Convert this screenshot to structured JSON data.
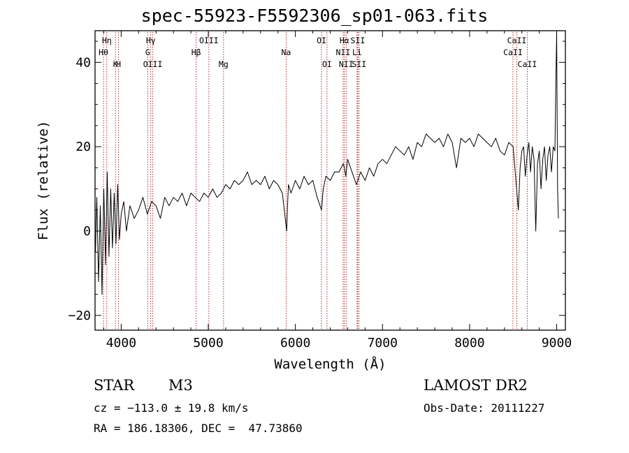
{
  "chart_data": {
    "type": "line",
    "title": "spec-55923-F5592306_sp01-063.fits",
    "xlabel": "Wavelength (Å)",
    "ylabel": "Flux (relative)",
    "xlim": [
      3700,
      9100
    ],
    "ylim": [
      -23.5,
      47.5
    ],
    "x_ticks": [
      4000,
      5000,
      6000,
      7000,
      8000,
      9000
    ],
    "y_ticks": [
      -20,
      0,
      20,
      40
    ],
    "x_tick_labels": [
      "4000",
      "5000",
      "6000",
      "7000",
      "8000",
      "9000"
    ],
    "y_tick_labels": [
      "−20",
      "0",
      "20",
      "40"
    ],
    "grid": false,
    "series": [
      {
        "x": [
          3705,
          3720,
          3740,
          3760,
          3780,
          3800,
          3820,
          3840,
          3860,
          3880,
          3900,
          3920,
          3940,
          3960,
          3980,
          4000,
          4030,
          4060,
          4100,
          4150,
          4200,
          4250,
          4300,
          4350,
          4400,
          4450,
          4500,
          4550,
          4600,
          4650,
          4700,
          4750,
          4800,
          4850,
          4900,
          4950,
          5000,
          5050,
          5100,
          5150,
          5200,
          5250,
          5300,
          5350,
          5400,
          5450,
          5500,
          5550,
          5600,
          5650,
          5700,
          5750,
          5800,
          5850,
          5900,
          5910,
          5920,
          5950,
          6000,
          6050,
          6100,
          6150,
          6200,
          6250,
          6300,
          6320,
          6350,
          6400,
          6450,
          6500,
          6550,
          6563,
          6580,
          6600,
          6650,
          6700,
          6750,
          6800,
          6850,
          6900,
          6950,
          7000,
          7050,
          7100,
          7150,
          7200,
          7250,
          7300,
          7350,
          7400,
          7450,
          7500,
          7550,
          7600,
          7650,
          7700,
          7750,
          7800,
          7850,
          7900,
          7950,
          8000,
          8050,
          8100,
          8150,
          8200,
          8250,
          8300,
          8350,
          8400,
          8450,
          8500,
          8520,
          8540,
          8560,
          8580,
          8600,
          8620,
          8640,
          8660,
          8680,
          8700,
          8720,
          8740,
          8760,
          8780,
          8800,
          8820,
          8840,
          8860,
          8880,
          8900,
          8920,
          8940,
          8960,
          8980,
          8990,
          9000,
          9010,
          9020
        ],
        "y": [
          -5,
          8,
          -12,
          6,
          -15,
          10,
          -8,
          14,
          -6,
          10,
          -4,
          9,
          -3,
          11,
          -2,
          4,
          7,
          0,
          6,
          3,
          5,
          8,
          4,
          7,
          6,
          3,
          8,
          6,
          8,
          7,
          9,
          6,
          9,
          8,
          7,
          9,
          8,
          10,
          8,
          9,
          11,
          10,
          12,
          11,
          12,
          14,
          11,
          12,
          11,
          13,
          10,
          12,
          11,
          9,
          0,
          6,
          11,
          9,
          12,
          10,
          13,
          11,
          12,
          8,
          5,
          10,
          13,
          12,
          14,
          14,
          16,
          15,
          13,
          17,
          14,
          11,
          14,
          12,
          15,
          13,
          16,
          17,
          16,
          18,
          20,
          19,
          18,
          20,
          17,
          21,
          20,
          23,
          22,
          21,
          22,
          20,
          23,
          21,
          15,
          22,
          21,
          22,
          20,
          23,
          22,
          21,
          20,
          22,
          19,
          18,
          21,
          20,
          15,
          10,
          5,
          15,
          19,
          20,
          13,
          18,
          21,
          14,
          20,
          17,
          0,
          16,
          19,
          10,
          17,
          20,
          12,
          18,
          20,
          14,
          20,
          19,
          35,
          47,
          10,
          3
        ]
      }
    ],
    "line_labels": [
      {
        "text": "Hη",
        "x": 3835,
        "row": 0
      },
      {
        "text": "Hθ",
        "x": 3797,
        "row": 1
      },
      {
        "text": "H",
        "x": 3970,
        "row": 2
      },
      {
        "text": "K",
        "x": 3934,
        "row": 2
      },
      {
        "text": "Hγ",
        "x": 4340,
        "row": 0
      },
      {
        "text": "G",
        "x": 4305,
        "row": 1
      },
      {
        "text": "OIII",
        "x": 4363,
        "row": 2
      },
      {
        "text": "OIII",
        "x": 5007,
        "row": 0
      },
      {
        "text": "Hβ",
        "x": 4861,
        "row": 1
      },
      {
        "text": "Mg",
        "x": 5175,
        "row": 2
      },
      {
        "text": "Na",
        "x": 5894,
        "row": 1
      },
      {
        "text": "OI",
        "x": 6300,
        "row": 0
      },
      {
        "text": "OI",
        "x": 6363,
        "row": 2
      },
      {
        "text": "Hα",
        "x": 6563,
        "row": 0
      },
      {
        "text": "NII",
        "x": 6548,
        "row": 1
      },
      {
        "text": "NII",
        "x": 6583,
        "row": 2
      },
      {
        "text": "SII",
        "x": 6716,
        "row": 0
      },
      {
        "text": "Li",
        "x": 6708,
        "row": 1
      },
      {
        "text": "SII",
        "x": 6731,
        "row": 2
      },
      {
        "text": "CaII",
        "x": 8542,
        "row": 0
      },
      {
        "text": "CaII",
        "x": 8498,
        "row": 1
      },
      {
        "text": "CaII",
        "x": 8662,
        "row": 2
      }
    ],
    "marker_lines": [
      3797,
      3835,
      3934,
      3970,
      4305,
      4340,
      4363,
      4861,
      5007,
      5175,
      5894,
      6300,
      6363,
      6548,
      6563,
      6583,
      6708,
      6716,
      6731,
      8498,
      8542,
      8662
    ],
    "line_color": "#000000",
    "marker_color": "#aa1111"
  },
  "info": {
    "class": "STAR",
    "subclass": "M3",
    "survey": "LAMOST DR2",
    "cz": "cz = −113.0 ± 19.8 km/s",
    "obsdate": "Obs-Date: 20111227",
    "radec": "RA = 186.18306, DEC =  47.73860"
  }
}
